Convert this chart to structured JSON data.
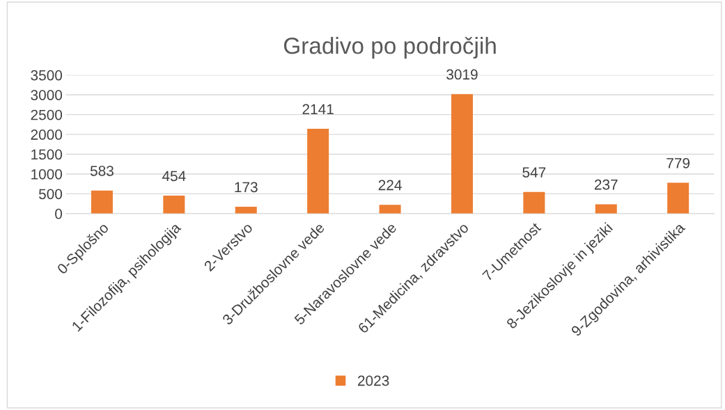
{
  "chart_data": {
    "type": "bar",
    "title": "Gradivo po področjih",
    "categories": [
      "0-Splošno",
      "1-Filozofija, psihologija",
      "2-Verstvo",
      "3-Družboslovne vede",
      "5-Naravoslovne vede",
      "61-Medicina, zdravstvo",
      "7-Umetnost",
      "8-Jezikoslovje in jeziki",
      "9-Zgodovina, arhivistika"
    ],
    "series": [
      {
        "name": "2023",
        "color": "#ed7d31",
        "values": [
          583,
          454,
          173,
          2141,
          224,
          3019,
          547,
          237,
          779
        ]
      }
    ],
    "ylim": [
      0,
      3500
    ],
    "yticks": [
      0,
      500,
      1000,
      1500,
      2000,
      2500,
      3000,
      3500
    ],
    "grid": "y",
    "legend": "bottom",
    "data_labels": true
  }
}
